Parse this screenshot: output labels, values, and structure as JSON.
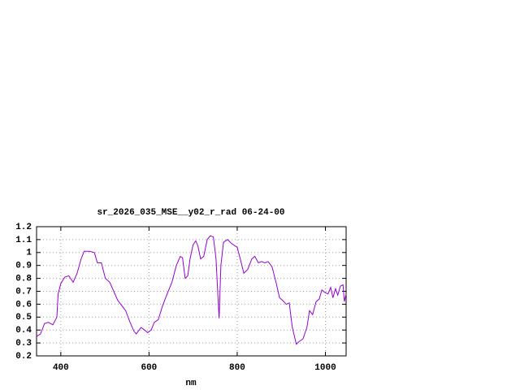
{
  "chart_data": {
    "type": "line",
    "title": "sr_2026_035_MSE__y02_r_rad 06-24-00",
    "x_label": "nm",
    "color": "#9400d3",
    "grid": true,
    "xlim": [
      345,
      1047
    ],
    "ylim": [
      0.2,
      1.2
    ],
    "xticks": [
      400,
      600,
      800,
      1000
    ],
    "yticks": [
      0.2,
      0.3,
      0.4,
      0.5,
      0.6,
      0.7,
      0.8,
      0.9,
      1,
      1.1,
      1.2
    ],
    "x": [
      345,
      354,
      363,
      372,
      382,
      391,
      394,
      400,
      409,
      418,
      428,
      437,
      446,
      453,
      465,
      476,
      483,
      492,
      501,
      511,
      520,
      529,
      538,
      547,
      557,
      566,
      571,
      582,
      590,
      597,
      605,
      612,
      621,
      630,
      640,
      652,
      662,
      671,
      676,
      682,
      688,
      693,
      700,
      706,
      711,
      717,
      724,
      732,
      739,
      746,
      752,
      758,
      759,
      763,
      769,
      778,
      787,
      800,
      807,
      815,
      824,
      833,
      840,
      848,
      855,
      863,
      870,
      879,
      888,
      896,
      903,
      911,
      918,
      925,
      934,
      940,
      949,
      958,
      964,
      971,
      979,
      986,
      992,
      999,
      1006,
      1012,
      1017,
      1023,
      1028,
      1034,
      1040,
      1043,
      1047
    ],
    "values": [
      0.35,
      0.37,
      0.45,
      0.46,
      0.44,
      0.5,
      0.68,
      0.76,
      0.81,
      0.82,
      0.77,
      0.84,
      0.95,
      1.01,
      1.01,
      1.0,
      0.92,
      0.92,
      0.8,
      0.77,
      0.7,
      0.63,
      0.59,
      0.55,
      0.46,
      0.39,
      0.37,
      0.42,
      0.4,
      0.38,
      0.4,
      0.46,
      0.48,
      0.58,
      0.67,
      0.77,
      0.9,
      0.97,
      0.96,
      0.8,
      0.82,
      0.95,
      1.06,
      1.09,
      1.05,
      0.95,
      0.97,
      1.1,
      1.13,
      1.12,
      0.95,
      0.55,
      0.49,
      0.9,
      1.08,
      1.1,
      1.07,
      1.04,
      0.95,
      0.84,
      0.87,
      0.95,
      0.97,
      0.92,
      0.93,
      0.92,
      0.93,
      0.89,
      0.77,
      0.65,
      0.63,
      0.6,
      0.61,
      0.42,
      0.29,
      0.31,
      0.33,
      0.42,
      0.55,
      0.52,
      0.62,
      0.64,
      0.71,
      0.69,
      0.68,
      0.73,
      0.65,
      0.72,
      0.67,
      0.74,
      0.75,
      0.62,
      0.68
    ]
  }
}
